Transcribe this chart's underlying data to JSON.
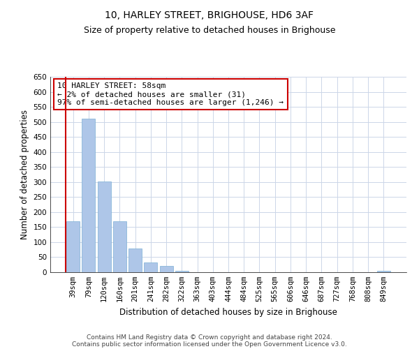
{
  "title": "10, HARLEY STREET, BRIGHOUSE, HD6 3AF",
  "subtitle": "Size of property relative to detached houses in Brighouse",
  "xlabel": "Distribution of detached houses by size in Brighouse",
  "ylabel": "Number of detached properties",
  "bins": [
    "39sqm",
    "79sqm",
    "120sqm",
    "160sqm",
    "201sqm",
    "241sqm",
    "282sqm",
    "322sqm",
    "363sqm",
    "403sqm",
    "444sqm",
    "484sqm",
    "525sqm",
    "565sqm",
    "606sqm",
    "646sqm",
    "687sqm",
    "727sqm",
    "768sqm",
    "808sqm",
    "849sqm"
  ],
  "values": [
    170,
    510,
    302,
    170,
    78,
    33,
    20,
    5,
    0,
    0,
    0,
    0,
    0,
    0,
    0,
    0,
    0,
    0,
    0,
    0,
    5
  ],
  "bar_color": "#aec6e8",
  "bar_edge_color": "#7bafd4",
  "marker_color": "#cc0000",
  "ylim": [
    0,
    650
  ],
  "yticks": [
    0,
    50,
    100,
    150,
    200,
    250,
    300,
    350,
    400,
    450,
    500,
    550,
    600,
    650
  ],
  "annotation_line1": "10 HARLEY STREET: 58sqm",
  "annotation_line2": "← 2% of detached houses are smaller (31)",
  "annotation_line3": "97% of semi-detached houses are larger (1,246) →",
  "annotation_box_color": "#ffffff",
  "annotation_box_edge": "#cc0000",
  "footer1": "Contains HM Land Registry data © Crown copyright and database right 2024.",
  "footer2": "Contains public sector information licensed under the Open Government Licence v3.0.",
  "background_color": "#ffffff",
  "grid_color": "#ccd6e8",
  "title_fontsize": 10,
  "subtitle_fontsize": 9,
  "axis_label_fontsize": 8.5,
  "tick_fontsize": 7.5,
  "annotation_fontsize": 8,
  "footer_fontsize": 6.5
}
